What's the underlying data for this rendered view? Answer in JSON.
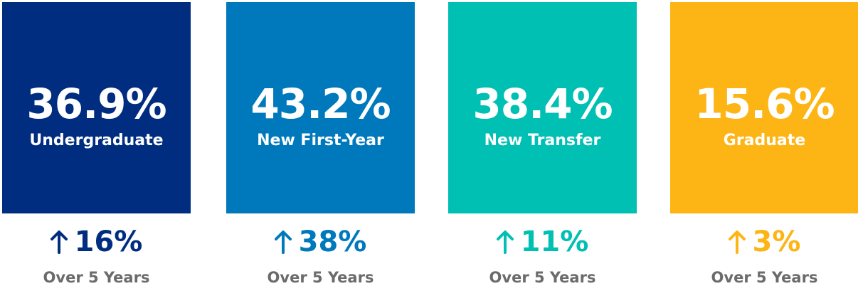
{
  "cards": [
    {
      "value": "36.9%",
      "label": "Undergraduate",
      "change": "16%",
      "note": "Over 5 Years",
      "color": "#002d80"
    },
    {
      "value": "43.2%",
      "label": "New First-Year",
      "change": "38%",
      "note": "Over 5 Years",
      "color": "#0079bc"
    },
    {
      "value": "38.4%",
      "label": "New Transfer",
      "change": "11%",
      "note": "Over 5 Years",
      "color": "#00bfb3"
    },
    {
      "value": "15.6%",
      "label": "Graduate",
      "change": "3%",
      "note": "Over 5 Years",
      "color": "#fdb515"
    }
  ]
}
